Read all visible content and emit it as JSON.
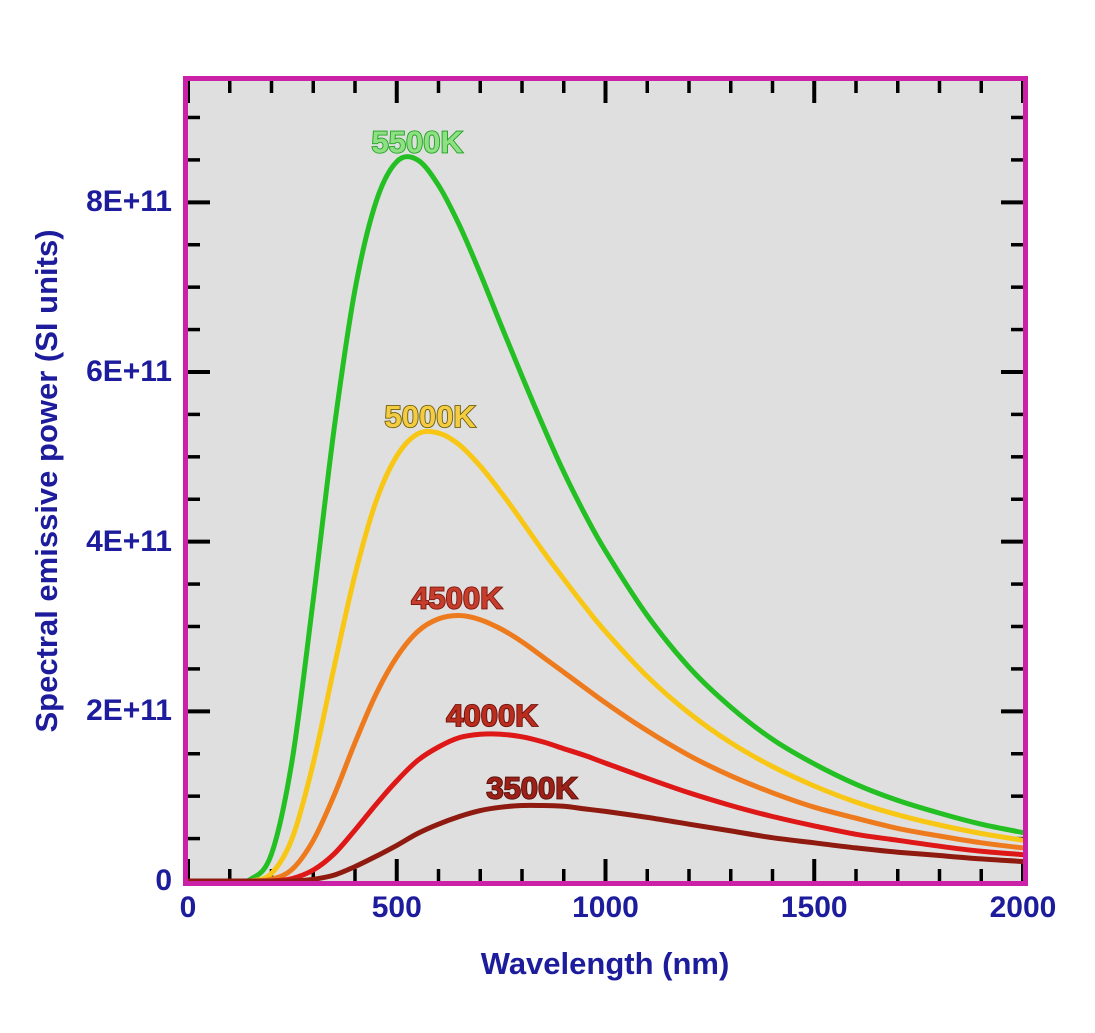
{
  "page": {
    "background": "#ffffff"
  },
  "frame": {
    "border_color": "#cb21a6",
    "plot_background": "#dfdfdf",
    "tick_color": "#000000"
  },
  "text_color": "#1c1c9c",
  "chart_data": {
    "type": "line",
    "title": "",
    "xlabel": "Wavelength (nm)",
    "ylabel": "Spectral emissive power (SI units)",
    "xlim": [
      0,
      2000
    ],
    "ylim": [
      0,
      943000000000.0
    ],
    "grid": false,
    "legend_position": "inline-curve-labels",
    "x_major_ticks": [
      0,
      500,
      1000,
      1500,
      2000
    ],
    "x_tick_labels": [
      "0",
      "500",
      "1000",
      "1500",
      "2000"
    ],
    "x_minor_step_nm": 100,
    "y_major_ticks_e11": [
      0,
      2,
      4,
      6,
      8
    ],
    "y_tick_labels": [
      "0",
      "2E+11",
      "4E+11",
      "6E+11",
      "8E+11"
    ],
    "y_minor_step_e11": 0.5,
    "wavelength_nm": [
      0,
      100,
      150,
      200,
      250,
      300,
      350,
      400,
      450,
      500,
      550,
      600,
      650,
      700,
      750,
      800,
      850,
      900,
      950,
      1000,
      1100,
      1200,
      1300,
      1400,
      1500,
      1600,
      1700,
      1800,
      1900,
      2000
    ],
    "series": [
      {
        "name": "5500K",
        "color": "#23bf23",
        "label_fill": "#8fdf85",
        "label_stroke": "#1da31d",
        "label_x_nm": 549,
        "label_y_e11": 8.59,
        "peak": {
          "wavelength_nm": 527,
          "value_e11": 8.55
        },
        "values_e11": [
          0,
          0,
          0.02,
          0.32,
          1.44,
          3.32,
          5.33,
          6.97,
          8.0,
          8.48,
          8.5,
          8.2,
          7.73,
          7.16,
          6.55,
          5.95,
          5.37,
          4.82,
          4.33,
          3.89,
          3.13,
          2.52,
          2.05,
          1.67,
          1.38,
          1.14,
          0.95,
          0.8,
          0.67,
          0.57
        ]
      },
      {
        "name": "5000K",
        "color": "#f8c716",
        "label_fill": "#f3cc43",
        "label_stroke": "#6e5e08",
        "label_x_nm": 580,
        "label_y_e11": 5.35,
        "peak": {
          "wavelength_nm": 580,
          "value_e11": 5.28
        },
        "values_e11": [
          0,
          0,
          0,
          0.09,
          0.51,
          1.39,
          2.52,
          3.61,
          4.47,
          5.01,
          5.27,
          5.28,
          5.14,
          4.89,
          4.58,
          4.24,
          3.89,
          3.56,
          3.24,
          2.94,
          2.41,
          1.98,
          1.63,
          1.35,
          1.12,
          0.93,
          0.78,
          0.66,
          0.56,
          0.48
        ]
      },
      {
        "name": "4500K",
        "color": "#ee7a1e",
        "label_fill": "#c63d2b",
        "label_stroke": "#7c150e",
        "label_x_nm": 644,
        "label_y_e11": 3.21,
        "peak": {
          "wavelength_nm": 644,
          "value_e11": 3.13
        },
        "values_e11": [
          0,
          0,
          0,
          0.02,
          0.14,
          0.48,
          1.01,
          1.63,
          2.2,
          2.64,
          2.94,
          3.09,
          3.13,
          3.08,
          2.97,
          2.82,
          2.64,
          2.46,
          2.28,
          2.1,
          1.77,
          1.48,
          1.24,
          1.04,
          0.87,
          0.74,
          0.62,
          0.53,
          0.45,
          0.39
        ]
      },
      {
        "name": "4000K",
        "color": "#de1717",
        "label_fill": "#b92d1f",
        "label_stroke": "#6e0e08",
        "label_x_nm": 728,
        "label_y_e11": 1.83,
        "peak": {
          "wavelength_nm": 724,
          "value_e11": 1.73
        },
        "values_e11": [
          0,
          0,
          0,
          0,
          0.03,
          0.13,
          0.32,
          0.6,
          0.9,
          1.18,
          1.42,
          1.58,
          1.69,
          1.73,
          1.73,
          1.7,
          1.64,
          1.56,
          1.48,
          1.39,
          1.21,
          1.04,
          0.89,
          0.76,
          0.65,
          0.55,
          0.48,
          0.41,
          0.35,
          0.31
        ]
      },
      {
        "name": "3500K",
        "color": "#8e1a10",
        "label_fill": "#9a2018",
        "label_stroke": "#580d07",
        "label_x_nm": 824,
        "label_y_e11": 0.97,
        "peak": {
          "wavelength_nm": 828,
          "value_e11": 0.89
        },
        "values_e11": [
          0,
          0,
          0,
          0,
          0,
          0.02,
          0.07,
          0.17,
          0.29,
          0.42,
          0.56,
          0.67,
          0.76,
          0.83,
          0.87,
          0.89,
          0.89,
          0.88,
          0.85,
          0.82,
          0.75,
          0.67,
          0.59,
          0.51,
          0.45,
          0.39,
          0.34,
          0.3,
          0.26,
          0.23
        ]
      }
    ]
  }
}
